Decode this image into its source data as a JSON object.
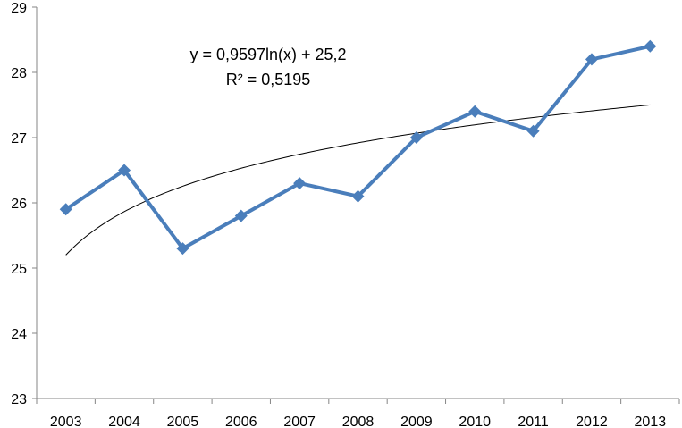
{
  "chart_data": {
    "type": "line",
    "categories": [
      "2003",
      "2004",
      "2005",
      "2006",
      "2007",
      "2008",
      "2009",
      "2010",
      "2011",
      "2012",
      "2013"
    ],
    "series": [
      {
        "values": [
          25.9,
          26.5,
          25.3,
          25.8,
          26.3,
          26.1,
          27.0,
          27.4,
          27.1,
          28.2,
          28.4
        ],
        "color": "#4a7ebb",
        "marker": "diamond"
      }
    ],
    "trendline": {
      "kind": "logarithmic",
      "slope": 0.9597,
      "intercept": 25.2,
      "color": "#000000",
      "equation": "y = 0,9597ln(x) + 25,2",
      "r_squared": "R² = 0,5195"
    },
    "y_ticks": [
      "23",
      "24",
      "25",
      "26",
      "27",
      "28",
      "29"
    ],
    "ylim": [
      23,
      29
    ],
    "grid": false,
    "legend": "none",
    "title": "",
    "xlabel": "",
    "ylabel": ""
  }
}
